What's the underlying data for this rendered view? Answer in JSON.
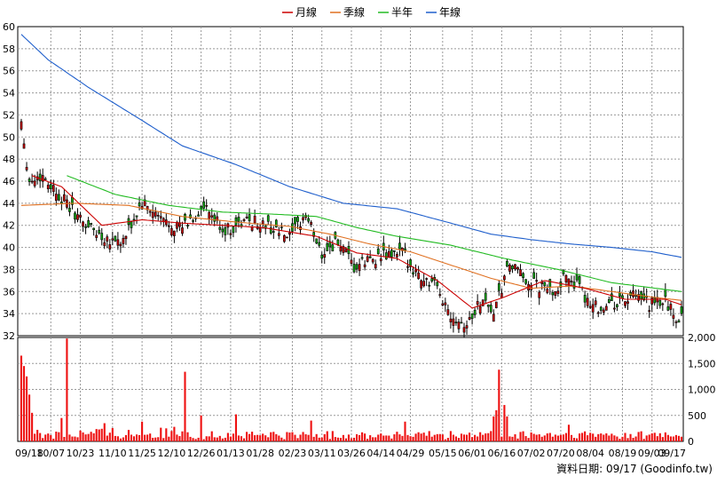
{
  "chart_data": {
    "type": "candlestick",
    "legend": [
      {
        "name": "月線",
        "color": "#cc0000"
      },
      {
        "name": "季線",
        "color": "#e07020"
      },
      {
        "name": "半年",
        "color": "#22bb22"
      },
      {
        "name": "年線",
        "color": "#1f5fcc"
      }
    ],
    "price_axis": {
      "ticks": [
        32,
        34,
        36,
        38,
        40,
        42,
        44,
        46,
        48,
        50,
        52,
        54,
        56,
        58,
        60
      ],
      "ylim": [
        32,
        60
      ]
    },
    "volume_axis": {
      "ticks": [
        "0",
        "500",
        "1,000",
        "1,500",
        "2,000"
      ],
      "ylim": [
        0,
        2000
      ]
    },
    "x_ticks": [
      "09/18",
      "10/07",
      "10/23",
      "11/10",
      "11/25",
      "12/10",
      "12/26",
      "01/13",
      "01/28",
      "02/23",
      "03/11",
      "03/26",
      "04/14",
      "04/29",
      "05/15",
      "06/01",
      "06/16",
      "07/02",
      "07/20",
      "08/04",
      "08/19",
      "09/03",
      "09/17"
    ],
    "source_label": "資料日期: 09/17  (Goodinfo.tw)",
    "candle_colors": {
      "up": "#cc0000",
      "down": "#11aa11"
    },
    "volume_color": "#ee1111",
    "price_keypoints": [
      {
        "t": 0,
        "p": 51.5
      },
      {
        "t": 3,
        "p": 46.0
      },
      {
        "t": 8,
        "p": 46.5
      },
      {
        "t": 15,
        "p": 44.5
      },
      {
        "t": 22,
        "p": 42.5
      },
      {
        "t": 30,
        "p": 41.0
      },
      {
        "t": 38,
        "p": 40.5
      },
      {
        "t": 45,
        "p": 44.0
      },
      {
        "t": 52,
        "p": 42.5
      },
      {
        "t": 60,
        "p": 41.8
      },
      {
        "t": 68,
        "p": 43.5
      },
      {
        "t": 76,
        "p": 41.5
      },
      {
        "t": 85,
        "p": 42.5
      },
      {
        "t": 93,
        "p": 41.8
      },
      {
        "t": 100,
        "p": 40.8
      },
      {
        "t": 106,
        "p": 43.0
      },
      {
        "t": 112,
        "p": 39.5
      },
      {
        "t": 118,
        "p": 40.5
      },
      {
        "t": 124,
        "p": 38.0
      },
      {
        "t": 130,
        "p": 39.0
      },
      {
        "t": 136,
        "p": 39.2
      },
      {
        "t": 142,
        "p": 39.5
      },
      {
        "t": 148,
        "p": 37.5
      },
      {
        "t": 154,
        "p": 36.5
      },
      {
        "t": 160,
        "p": 34.0
      },
      {
        "t": 166,
        "p": 33.0
      },
      {
        "t": 172,
        "p": 35.5
      },
      {
        "t": 176,
        "p": 34.0
      },
      {
        "t": 182,
        "p": 38.5
      },
      {
        "t": 186,
        "p": 37.5
      },
      {
        "t": 192,
        "p": 36.5
      },
      {
        "t": 198,
        "p": 36.0
      },
      {
        "t": 204,
        "p": 37.5
      },
      {
        "t": 210,
        "p": 35.5
      },
      {
        "t": 216,
        "p": 34.5
      },
      {
        "t": 222,
        "p": 35.0
      },
      {
        "t": 228,
        "p": 35.5
      },
      {
        "t": 234,
        "p": 34.8
      },
      {
        "t": 240,
        "p": 35.2
      },
      {
        "t": 244,
        "p": 33.5
      },
      {
        "t": 246,
        "p": 34.0
      }
    ],
    "sma": {
      "month": [
        {
          "t": 4,
          "p": 46.5
        },
        {
          "t": 15,
          "p": 45.5
        },
        {
          "t": 30,
          "p": 42.0
        },
        {
          "t": 45,
          "p": 42.5
        },
        {
          "t": 60,
          "p": 42.2
        },
        {
          "t": 75,
          "p": 42.0
        },
        {
          "t": 90,
          "p": 41.8
        },
        {
          "t": 110,
          "p": 41.0
        },
        {
          "t": 125,
          "p": 39.5
        },
        {
          "t": 140,
          "p": 39.0
        },
        {
          "t": 155,
          "p": 37.0
        },
        {
          "t": 168,
          "p": 34.5
        },
        {
          "t": 180,
          "p": 35.5
        },
        {
          "t": 195,
          "p": 37.0
        },
        {
          "t": 210,
          "p": 36.3
        },
        {
          "t": 225,
          "p": 35.3
        },
        {
          "t": 240,
          "p": 35.3
        },
        {
          "t": 246,
          "p": 34.8
        }
      ],
      "quarter": [
        {
          "t": 0,
          "p": 43.8
        },
        {
          "t": 20,
          "p": 44.0
        },
        {
          "t": 40,
          "p": 43.8
        },
        {
          "t": 60,
          "p": 42.8
        },
        {
          "t": 80,
          "p": 42.3
        },
        {
          "t": 100,
          "p": 41.9
        },
        {
          "t": 115,
          "p": 41.2
        },
        {
          "t": 130,
          "p": 40.3
        },
        {
          "t": 145,
          "p": 39.6
        },
        {
          "t": 160,
          "p": 38.4
        },
        {
          "t": 175,
          "p": 37.2
        },
        {
          "t": 190,
          "p": 36.3
        },
        {
          "t": 205,
          "p": 36.5
        },
        {
          "t": 220,
          "p": 36.0
        },
        {
          "t": 235,
          "p": 35.5
        },
        {
          "t": 246,
          "p": 35.2
        }
      ],
      "half": [
        {
          "t": 17,
          "p": 46.5
        },
        {
          "t": 35,
          "p": 44.8
        },
        {
          "t": 55,
          "p": 43.8
        },
        {
          "t": 75,
          "p": 43.2
        },
        {
          "t": 95,
          "p": 43.0
        },
        {
          "t": 110,
          "p": 42.8
        },
        {
          "t": 125,
          "p": 41.8
        },
        {
          "t": 140,
          "p": 41.0
        },
        {
          "t": 160,
          "p": 40.2
        },
        {
          "t": 180,
          "p": 39.0
        },
        {
          "t": 200,
          "p": 38.0
        },
        {
          "t": 220,
          "p": 36.8
        },
        {
          "t": 246,
          "p": 36.0
        }
      ],
      "year": [
        {
          "t": 0,
          "p": 59.3
        },
        {
          "t": 10,
          "p": 57.0
        },
        {
          "t": 25,
          "p": 54.5
        },
        {
          "t": 45,
          "p": 51.5
        },
        {
          "t": 60,
          "p": 49.2
        },
        {
          "t": 80,
          "p": 47.5
        },
        {
          "t": 100,
          "p": 45.5
        },
        {
          "t": 120,
          "p": 44.0
        },
        {
          "t": 140,
          "p": 43.5
        },
        {
          "t": 160,
          "p": 42.2
        },
        {
          "t": 175,
          "p": 41.2
        },
        {
          "t": 190,
          "p": 40.7
        },
        {
          "t": 205,
          "p": 40.3
        },
        {
          "t": 220,
          "p": 40.0
        },
        {
          "t": 235,
          "p": 39.6
        },
        {
          "t": 246,
          "p": 39.1
        }
      ]
    },
    "volume_spikes": [
      {
        "t": 0,
        "v": 1650
      },
      {
        "t": 1,
        "v": 1450
      },
      {
        "t": 2,
        "v": 1250
      },
      {
        "t": 3,
        "v": 900
      },
      {
        "t": 4,
        "v": 550
      },
      {
        "t": 15,
        "v": 450
      },
      {
        "t": 17,
        "v": 1980
      },
      {
        "t": 31,
        "v": 350
      },
      {
        "t": 45,
        "v": 380
      },
      {
        "t": 61,
        "v": 1340
      },
      {
        "t": 67,
        "v": 500
      },
      {
        "t": 80,
        "v": 520
      },
      {
        "t": 108,
        "v": 400
      },
      {
        "t": 143,
        "v": 380
      },
      {
        "t": 176,
        "v": 480
      },
      {
        "t": 177,
        "v": 600
      },
      {
        "t": 178,
        "v": 1380
      },
      {
        "t": 180,
        "v": 700
      },
      {
        "t": 181,
        "v": 480
      },
      {
        "t": 204,
        "v": 320
      }
    ]
  }
}
